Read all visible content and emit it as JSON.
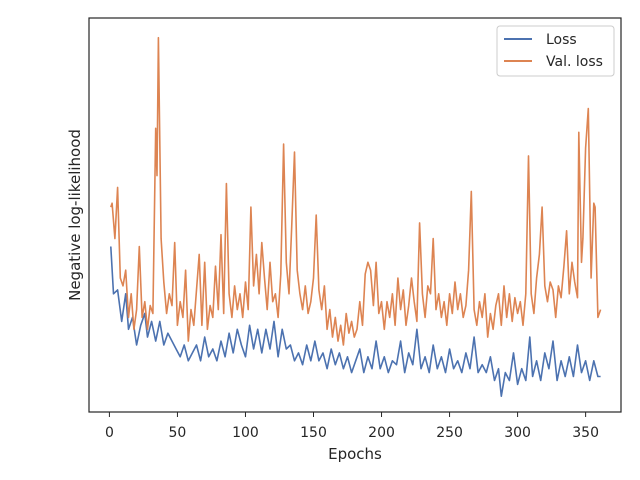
{
  "chart_data": {
    "type": "line",
    "xlabel": "Epochs",
    "ylabel": "Negative log-likelihood",
    "xlim": [
      -15,
      376
    ],
    "ylim": [
      0.0,
      1.0
    ],
    "xticks": [
      0,
      50,
      100,
      150,
      200,
      250,
      300,
      350
    ],
    "yticks_shown": false,
    "grid": false,
    "legend_position": "top-right",
    "series": [
      {
        "name": "Loss",
        "color": "#4c72b0",
        "points": [
          [
            1,
            0.42
          ],
          [
            3,
            0.3
          ],
          [
            6,
            0.31
          ],
          [
            9,
            0.23
          ],
          [
            12,
            0.3
          ],
          [
            14,
            0.21
          ],
          [
            17,
            0.24
          ],
          [
            20,
            0.17
          ],
          [
            23,
            0.22
          ],
          [
            26,
            0.25
          ],
          [
            28,
            0.19
          ],
          [
            31,
            0.23
          ],
          [
            34,
            0.18
          ],
          [
            37,
            0.23
          ],
          [
            40,
            0.17
          ],
          [
            43,
            0.2
          ],
          [
            46,
            0.18
          ],
          [
            49,
            0.16
          ],
          [
            52,
            0.14
          ],
          [
            55,
            0.17
          ],
          [
            58,
            0.13
          ],
          [
            61,
            0.15
          ],
          [
            64,
            0.17
          ],
          [
            67,
            0.13
          ],
          [
            70,
            0.19
          ],
          [
            73,
            0.14
          ],
          [
            76,
            0.16
          ],
          [
            79,
            0.13
          ],
          [
            82,
            0.18
          ],
          [
            85,
            0.14
          ],
          [
            88,
            0.2
          ],
          [
            91,
            0.15
          ],
          [
            94,
            0.21
          ],
          [
            97,
            0.17
          ],
          [
            100,
            0.14
          ],
          [
            103,
            0.22
          ],
          [
            106,
            0.16
          ],
          [
            109,
            0.21
          ],
          [
            112,
            0.15
          ],
          [
            115,
            0.21
          ],
          [
            118,
            0.16
          ],
          [
            121,
            0.23
          ],
          [
            124,
            0.14
          ],
          [
            127,
            0.21
          ],
          [
            130,
            0.16
          ],
          [
            133,
            0.17
          ],
          [
            136,
            0.13
          ],
          [
            139,
            0.15
          ],
          [
            142,
            0.12
          ],
          [
            145,
            0.17
          ],
          [
            148,
            0.13
          ],
          [
            151,
            0.18
          ],
          [
            154,
            0.13
          ],
          [
            157,
            0.15
          ],
          [
            160,
            0.11
          ],
          [
            163,
            0.16
          ],
          [
            166,
            0.12
          ],
          [
            169,
            0.15
          ],
          [
            172,
            0.11
          ],
          [
            175,
            0.14
          ],
          [
            178,
            0.1
          ],
          [
            181,
            0.13
          ],
          [
            184,
            0.16
          ],
          [
            187,
            0.1
          ],
          [
            190,
            0.14
          ],
          [
            193,
            0.11
          ],
          [
            196,
            0.18
          ],
          [
            199,
            0.11
          ],
          [
            202,
            0.14
          ],
          [
            205,
            0.1
          ],
          [
            208,
            0.13
          ],
          [
            211,
            0.12
          ],
          [
            214,
            0.18
          ],
          [
            217,
            0.1
          ],
          [
            220,
            0.15
          ],
          [
            223,
            0.12
          ],
          [
            226,
            0.21
          ],
          [
            229,
            0.11
          ],
          [
            232,
            0.14
          ],
          [
            235,
            0.1
          ],
          [
            238,
            0.17
          ],
          [
            241,
            0.11
          ],
          [
            244,
            0.14
          ],
          [
            247,
            0.1
          ],
          [
            250,
            0.16
          ],
          [
            253,
            0.11
          ],
          [
            256,
            0.13
          ],
          [
            259,
            0.1
          ],
          [
            262,
            0.15
          ],
          [
            265,
            0.11
          ],
          [
            268,
            0.19
          ],
          [
            271,
            0.1
          ],
          [
            274,
            0.12
          ],
          [
            277,
            0.1
          ],
          [
            280,
            0.14
          ],
          [
            283,
            0.08
          ],
          [
            286,
            0.11
          ],
          [
            288,
            0.04
          ],
          [
            291,
            0.1
          ],
          [
            294,
            0.08
          ],
          [
            297,
            0.15
          ],
          [
            300,
            0.07
          ],
          [
            303,
            0.11
          ],
          [
            306,
            0.08
          ],
          [
            309,
            0.19
          ],
          [
            311,
            0.09
          ],
          [
            314,
            0.13
          ],
          [
            317,
            0.08
          ],
          [
            320,
            0.15
          ],
          [
            323,
            0.11
          ],
          [
            326,
            0.18
          ],
          [
            329,
            0.08
          ],
          [
            332,
            0.13
          ],
          [
            335,
            0.09
          ],
          [
            338,
            0.14
          ],
          [
            341,
            0.09
          ],
          [
            344,
            0.17
          ],
          [
            347,
            0.1
          ],
          [
            350,
            0.13
          ],
          [
            353,
            0.08
          ],
          [
            356,
            0.13
          ],
          [
            359,
            0.09
          ],
          [
            361,
            0.09
          ]
        ]
      },
      {
        "name": "Val. loss",
        "color": "#dd8452",
        "points": [
          [
            1,
            0.52
          ],
          [
            2,
            0.53
          ],
          [
            4,
            0.44
          ],
          [
            6,
            0.57
          ],
          [
            8,
            0.34
          ],
          [
            10,
            0.32
          ],
          [
            12,
            0.36
          ],
          [
            14,
            0.24
          ],
          [
            16,
            0.3
          ],
          [
            18,
            0.21
          ],
          [
            20,
            0.26
          ],
          [
            22,
            0.42
          ],
          [
            24,
            0.24
          ],
          [
            26,
            0.28
          ],
          [
            28,
            0.21
          ],
          [
            30,
            0.27
          ],
          [
            32,
            0.25
          ],
          [
            34,
            0.72
          ],
          [
            35,
            0.6
          ],
          [
            36,
            0.95
          ],
          [
            38,
            0.44
          ],
          [
            40,
            0.33
          ],
          [
            42,
            0.25
          ],
          [
            44,
            0.3
          ],
          [
            46,
            0.27
          ],
          [
            48,
            0.43
          ],
          [
            50,
            0.22
          ],
          [
            52,
            0.28
          ],
          [
            54,
            0.24
          ],
          [
            56,
            0.36
          ],
          [
            58,
            0.18
          ],
          [
            60,
            0.26
          ],
          [
            62,
            0.22
          ],
          [
            64,
            0.31
          ],
          [
            66,
            0.4
          ],
          [
            68,
            0.22
          ],
          [
            70,
            0.38
          ],
          [
            72,
            0.21
          ],
          [
            74,
            0.27
          ],
          [
            76,
            0.24
          ],
          [
            78,
            0.37
          ],
          [
            80,
            0.26
          ],
          [
            82,
            0.45
          ],
          [
            84,
            0.25
          ],
          [
            86,
            0.58
          ],
          [
            88,
            0.3
          ],
          [
            90,
            0.24
          ],
          [
            92,
            0.32
          ],
          [
            94,
            0.26
          ],
          [
            96,
            0.3
          ],
          [
            98,
            0.24
          ],
          [
            100,
            0.33
          ],
          [
            102,
            0.26
          ],
          [
            104,
            0.52
          ],
          [
            106,
            0.32
          ],
          [
            108,
            0.4
          ],
          [
            110,
            0.3
          ],
          [
            112,
            0.43
          ],
          [
            114,
            0.34
          ],
          [
            116,
            0.26
          ],
          [
            118,
            0.38
          ],
          [
            120,
            0.28
          ],
          [
            122,
            0.3
          ],
          [
            124,
            0.24
          ],
          [
            126,
            0.35
          ],
          [
            128,
            0.68
          ],
          [
            130,
            0.38
          ],
          [
            132,
            0.3
          ],
          [
            134,
            0.47
          ],
          [
            136,
            0.66
          ],
          [
            138,
            0.36
          ],
          [
            140,
            0.3
          ],
          [
            142,
            0.26
          ],
          [
            144,
            0.32
          ],
          [
            146,
            0.25
          ],
          [
            148,
            0.28
          ],
          [
            150,
            0.34
          ],
          [
            152,
            0.5
          ],
          [
            154,
            0.31
          ],
          [
            156,
            0.26
          ],
          [
            158,
            0.32
          ],
          [
            160,
            0.21
          ],
          [
            162,
            0.26
          ],
          [
            164,
            0.19
          ],
          [
            166,
            0.24
          ],
          [
            168,
            0.18
          ],
          [
            170,
            0.22
          ],
          [
            172,
            0.17
          ],
          [
            174,
            0.25
          ],
          [
            176,
            0.2
          ],
          [
            178,
            0.23
          ],
          [
            180,
            0.19
          ],
          [
            182,
            0.21
          ],
          [
            184,
            0.28
          ],
          [
            186,
            0.22
          ],
          [
            188,
            0.35
          ],
          [
            190,
            0.38
          ],
          [
            192,
            0.36
          ],
          [
            194,
            0.27
          ],
          [
            196,
            0.38
          ],
          [
            198,
            0.25
          ],
          [
            200,
            0.28
          ],
          [
            202,
            0.21
          ],
          [
            204,
            0.28
          ],
          [
            206,
            0.24
          ],
          [
            208,
            0.3
          ],
          [
            210,
            0.22
          ],
          [
            212,
            0.34
          ],
          [
            214,
            0.26
          ],
          [
            216,
            0.31
          ],
          [
            218,
            0.22
          ],
          [
            220,
            0.27
          ],
          [
            222,
            0.34
          ],
          [
            224,
            0.28
          ],
          [
            226,
            0.23
          ],
          [
            228,
            0.48
          ],
          [
            230,
            0.3
          ],
          [
            232,
            0.24
          ],
          [
            234,
            0.32
          ],
          [
            236,
            0.3
          ],
          [
            238,
            0.44
          ],
          [
            240,
            0.26
          ],
          [
            242,
            0.3
          ],
          [
            244,
            0.24
          ],
          [
            246,
            0.28
          ],
          [
            248,
            0.22
          ],
          [
            250,
            0.3
          ],
          [
            252,
            0.25
          ],
          [
            254,
            0.33
          ],
          [
            256,
            0.26
          ],
          [
            258,
            0.3
          ],
          [
            260,
            0.24
          ],
          [
            262,
            0.27
          ],
          [
            264,
            0.36
          ],
          [
            266,
            0.56
          ],
          [
            268,
            0.26
          ],
          [
            270,
            0.22
          ],
          [
            272,
            0.28
          ],
          [
            274,
            0.24
          ],
          [
            276,
            0.3
          ],
          [
            278,
            0.19
          ],
          [
            280,
            0.25
          ],
          [
            282,
            0.21
          ],
          [
            284,
            0.27
          ],
          [
            286,
            0.3
          ],
          [
            288,
            0.22
          ],
          [
            290,
            0.32
          ],
          [
            292,
            0.24
          ],
          [
            294,
            0.3
          ],
          [
            296,
            0.23
          ],
          [
            298,
            0.29
          ],
          [
            300,
            0.25
          ],
          [
            302,
            0.28
          ],
          [
            304,
            0.22
          ],
          [
            306,
            0.3
          ],
          [
            308,
            0.65
          ],
          [
            310,
            0.3
          ],
          [
            312,
            0.25
          ],
          [
            314,
            0.34
          ],
          [
            316,
            0.4
          ],
          [
            318,
            0.52
          ],
          [
            320,
            0.32
          ],
          [
            322,
            0.28
          ],
          [
            324,
            0.33
          ],
          [
            326,
            0.31
          ],
          [
            328,
            0.24
          ],
          [
            330,
            0.32
          ],
          [
            332,
            0.29
          ],
          [
            334,
            0.37
          ],
          [
            336,
            0.46
          ],
          [
            338,
            0.3
          ],
          [
            340,
            0.38
          ],
          [
            342,
            0.33
          ],
          [
            344,
            0.29
          ],
          [
            345,
            0.71
          ],
          [
            347,
            0.38
          ],
          [
            348,
            0.44
          ],
          [
            350,
            0.67
          ],
          [
            352,
            0.77
          ],
          [
            354,
            0.34
          ],
          [
            356,
            0.53
          ],
          [
            357,
            0.52
          ],
          [
            359,
            0.24
          ],
          [
            361,
            0.26
          ]
        ]
      }
    ]
  }
}
